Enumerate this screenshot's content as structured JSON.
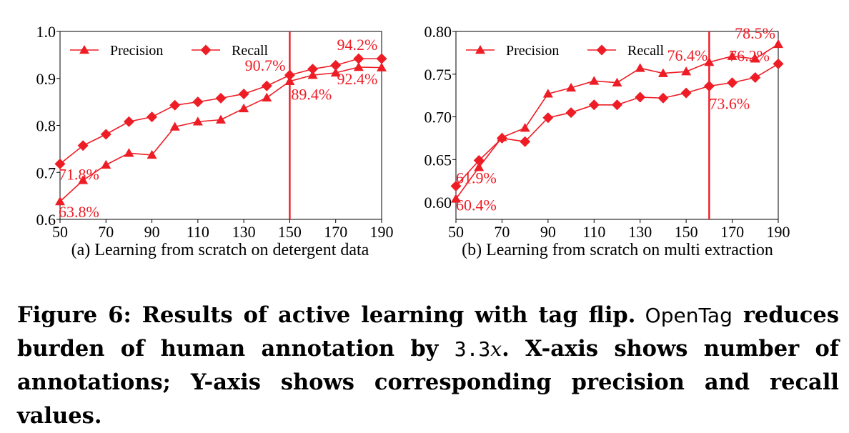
{
  "colors": {
    "series": "#ee1c25",
    "axis": "#000000",
    "vline": "#ee1c25"
  },
  "chart_data": [
    {
      "type": "line",
      "panel_caption": "(a) Learning from scratch on detergent data",
      "x": [
        50,
        60,
        70,
        80,
        90,
        100,
        110,
        120,
        130,
        140,
        150,
        160,
        170,
        180,
        190
      ],
      "xlim": [
        50,
        190
      ],
      "xticks": [
        "50",
        "70",
        "90",
        "110",
        "130",
        "150",
        "170",
        "190"
      ],
      "ylim": [
        0.6,
        1.0
      ],
      "yticks": [
        "0.6",
        "0.7",
        "0.8",
        "0.9",
        "1.0"
      ],
      "legend_position": "top-left",
      "vline_x": 150,
      "series": [
        {
          "name": "Precision",
          "marker": "triangle",
          "values": [
            0.638,
            0.683,
            0.716,
            0.741,
            0.737,
            0.797,
            0.808,
            0.812,
            0.836,
            0.859,
            0.894,
            0.907,
            0.912,
            0.924,
            0.923
          ]
        },
        {
          "name": "Recall",
          "marker": "diamond",
          "values": [
            0.718,
            0.757,
            0.781,
            0.808,
            0.818,
            0.843,
            0.85,
            0.858,
            0.867,
            0.884,
            0.907,
            0.92,
            0.928,
            0.942,
            0.942
          ]
        }
      ],
      "annotations": [
        "71.8%",
        "63.8%",
        "90.7%",
        "89.4%",
        "94.2%",
        "92.4%"
      ]
    },
    {
      "type": "line",
      "panel_caption": "(b) Learning from scratch on multi extraction",
      "x": [
        50,
        60,
        70,
        80,
        90,
        100,
        110,
        120,
        130,
        140,
        150,
        160,
        170,
        180,
        190
      ],
      "xlim": [
        50,
        190
      ],
      "xticks": [
        "50",
        "70",
        "90",
        "110",
        "130",
        "150",
        "170",
        "190"
      ],
      "ylim": [
        0.58,
        0.8
      ],
      "yticks": [
        "0.60",
        "0.65",
        "0.70",
        "0.75",
        "0.80"
      ],
      "legend_position": "top-left",
      "vline_x": 160,
      "series": [
        {
          "name": "Precision",
          "marker": "triangle",
          "values": [
            0.604,
            0.641,
            0.676,
            0.687,
            0.727,
            0.734,
            0.742,
            0.74,
            0.757,
            0.751,
            0.753,
            0.764,
            0.771,
            0.768,
            0.785
          ]
        },
        {
          "name": "Recall",
          "marker": "diamond",
          "values": [
            0.619,
            0.649,
            0.675,
            0.671,
            0.699,
            0.705,
            0.714,
            0.714,
            0.723,
            0.722,
            0.728,
            0.736,
            0.74,
            0.746,
            0.762
          ]
        }
      ],
      "annotations": [
        "61.9%",
        "60.4%",
        "76.4%",
        "73.6%",
        "78.5%",
        "76.2%"
      ]
    }
  ],
  "caption": {
    "label": "Figure 6:",
    "title": " Results of active learning with tag flip.",
    "system": " OpenTag",
    "part1": " reduces burden of human annotation by ",
    "factor": "3.3",
    "factor_unit": "x",
    "part2": ". X-axis shows number of annotations; Y-axis shows corresponding precision and recall values."
  }
}
